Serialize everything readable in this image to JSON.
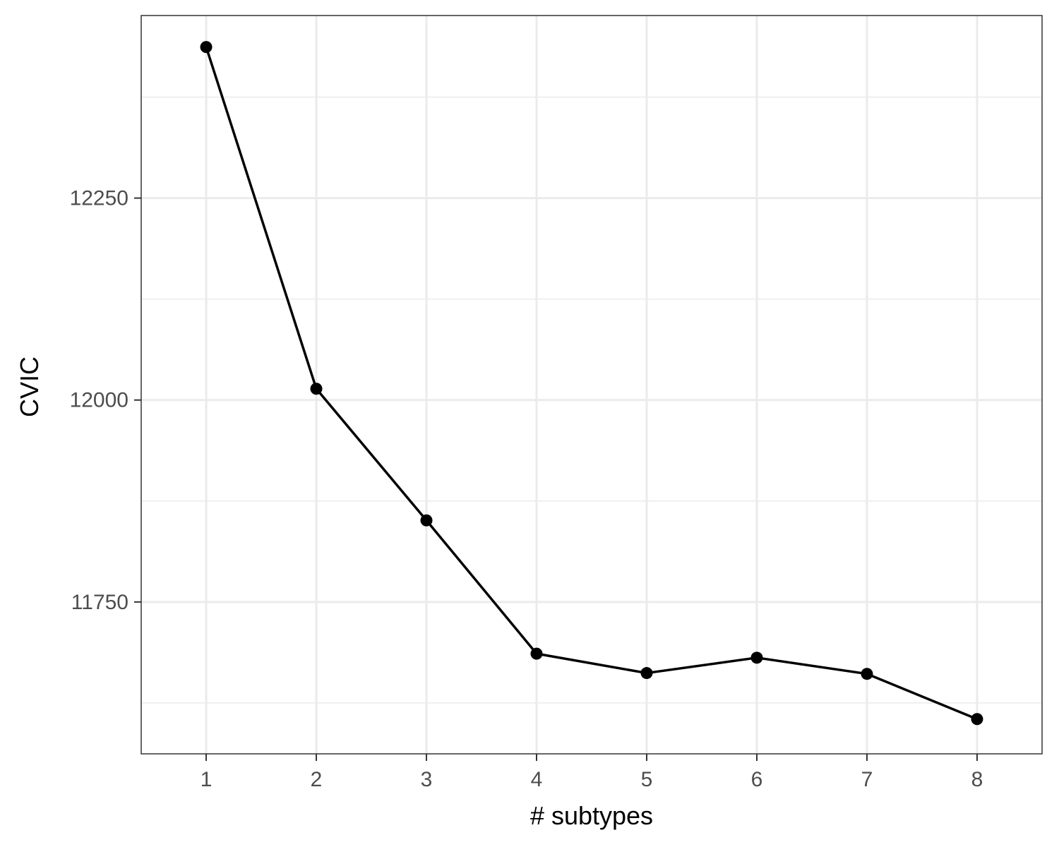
{
  "chart_data": {
    "type": "line",
    "xlabel": "# subtypes",
    "ylabel": "CVIC",
    "x": [
      1,
      2,
      3,
      4,
      5,
      6,
      7,
      8
    ],
    "y": [
      12437,
      12014,
      11851,
      11686,
      11662,
      11681,
      11661,
      11605
    ],
    "x_ticks": [
      1,
      2,
      3,
      4,
      5,
      6,
      7,
      8
    ],
    "y_ticks": [
      11750,
      12000,
      12250
    ],
    "y_minor_ticks": [
      11625,
      11875,
      12125,
      12375
    ],
    "xlim": [
      0.41,
      8.59
    ],
    "ylim": [
      11562,
      12476
    ],
    "grid": true,
    "marker": "circle",
    "line_color": "#000000",
    "point_color": "#000000",
    "grid_color": "#ebebeb",
    "border_color": "#333333"
  }
}
